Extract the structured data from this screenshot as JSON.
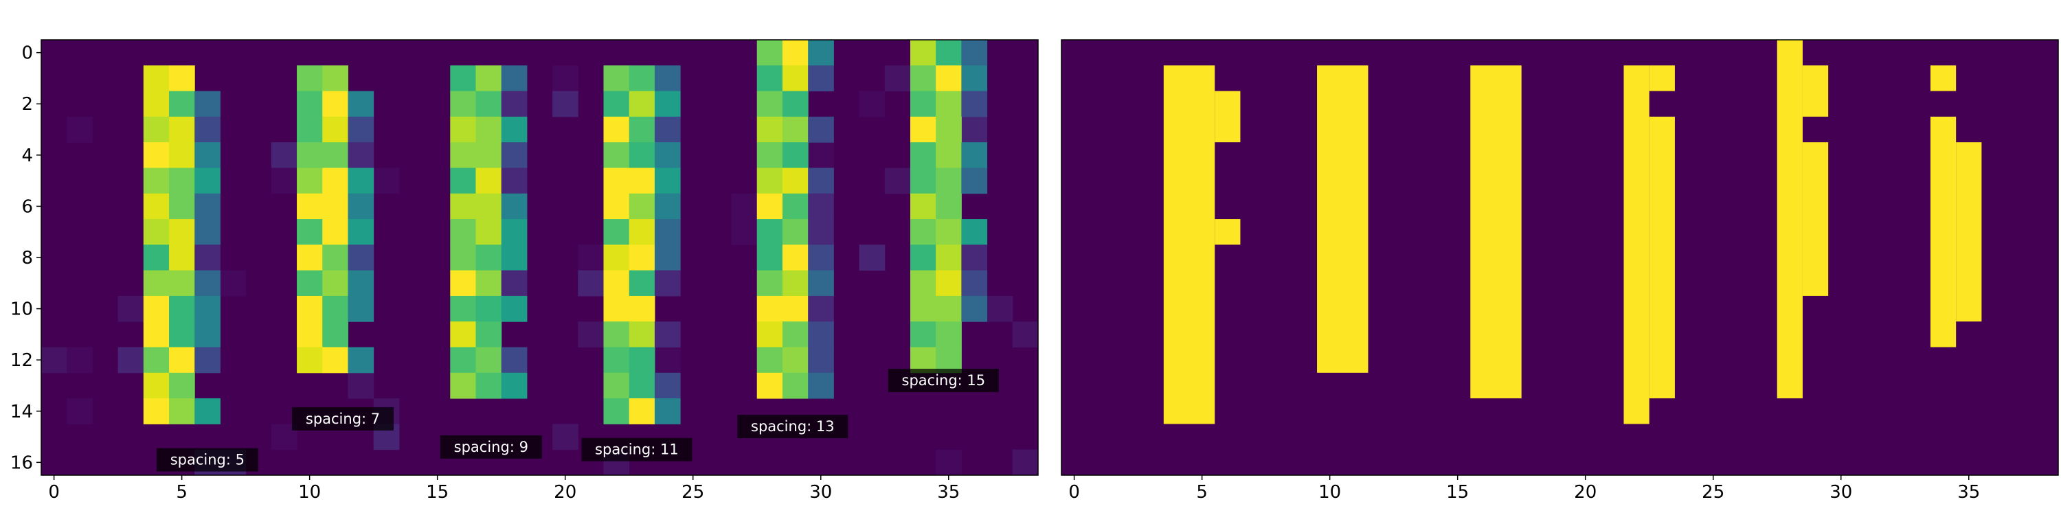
{
  "chart_data": [
    {
      "type": "heatmap",
      "title": "",
      "xlabel": "",
      "ylabel": "",
      "xticks": [
        "0",
        "5",
        "10",
        "15",
        "20",
        "25",
        "30",
        "35"
      ],
      "yticks": [
        "0",
        "2",
        "4",
        "6",
        "8",
        "10",
        "12",
        "14",
        "16"
      ],
      "xlim": [
        -0.5,
        38.5
      ],
      "ylim": [
        16.5,
        -0.5
      ],
      "colormap": "viridis",
      "colors": [
        "#440154",
        "#482878",
        "#3e4989",
        "#31688e",
        "#26828e",
        "#1f9e89",
        "#35b779",
        "#6ece58",
        "#b5de2b",
        "#fde725"
      ],
      "bars": [
        {
          "x": 4.5,
          "y_start": 1,
          "y_end": 14
        },
        {
          "x": 10.5,
          "y_start": 1,
          "y_end": 12
        },
        {
          "x": 16.5,
          "y_start": 1,
          "y_end": 13
        },
        {
          "x": 22.5,
          "y_start": 1,
          "y_end": 14
        },
        {
          "x": 28.5,
          "y_start": 0,
          "y_end": 13
        },
        {
          "x": 34.5,
          "y_start": 0,
          "y_end": 12
        }
      ],
      "annotations": [
        {
          "text": "spacing: 5",
          "x": 6,
          "y": 15.9
        },
        {
          "text": "spacing: 7",
          "x": 11.3,
          "y": 14.3
        },
        {
          "text": "spacing: 9",
          "x": 17.1,
          "y": 15.4
        },
        {
          "text": "spacing: 11",
          "x": 22.8,
          "y": 15.5
        },
        {
          "text": "spacing: 13",
          "x": 28.9,
          "y": 14.6
        },
        {
          "text": "spacing: 15",
          "x": 34.8,
          "y": 12.8
        }
      ]
    },
    {
      "type": "heatmap",
      "title": "",
      "xlabel": "",
      "ylabel": "",
      "xticks": [
        "0",
        "5",
        "10",
        "15",
        "20",
        "25",
        "30",
        "35"
      ],
      "xlim": [
        -0.5,
        38.5
      ],
      "ylim": [
        16.5,
        -0.5
      ],
      "background_color": "#440154",
      "fill_color": "#fde725",
      "segments": [
        {
          "x0": 3.5,
          "x1": 5.5,
          "y0": 0.5,
          "y1": 14.5
        },
        {
          "x0": 5.5,
          "x1": 6.5,
          "y0": 1.5,
          "y1": 3.5
        },
        {
          "x0": 5.5,
          "x1": 6.5,
          "y0": 6.5,
          "y1": 7.5
        },
        {
          "x0": 9.5,
          "x1": 11.5,
          "y0": 0.5,
          "y1": 12.5
        },
        {
          "x0": 15.5,
          "x1": 17.5,
          "y0": 0.5,
          "y1": 13.5
        },
        {
          "x0": 21.5,
          "x1": 22.5,
          "y0": 0.5,
          "y1": 14.5
        },
        {
          "x0": 22.5,
          "x1": 23.5,
          "y0": 0.5,
          "y1": 1.5
        },
        {
          "x0": 22.5,
          "x1": 23.5,
          "y0": 2.5,
          "y1": 13.5
        },
        {
          "x0": 27.5,
          "x1": 28.5,
          "y0": -0.5,
          "y1": 13.5
        },
        {
          "x0": 28.5,
          "x1": 29.5,
          "y0": 0.5,
          "y1": 2.5
        },
        {
          "x0": 28.5,
          "x1": 29.5,
          "y0": 3.5,
          "y1": 9.5
        },
        {
          "x0": 33.5,
          "x1": 34.5,
          "y0": 0.5,
          "y1": 1.5
        },
        {
          "x0": 33.5,
          "x1": 34.5,
          "y0": 2.5,
          "y1": 11.5
        },
        {
          "x0": 34.5,
          "x1": 35.5,
          "y0": 3.5,
          "y1": 10.5
        }
      ]
    }
  ]
}
